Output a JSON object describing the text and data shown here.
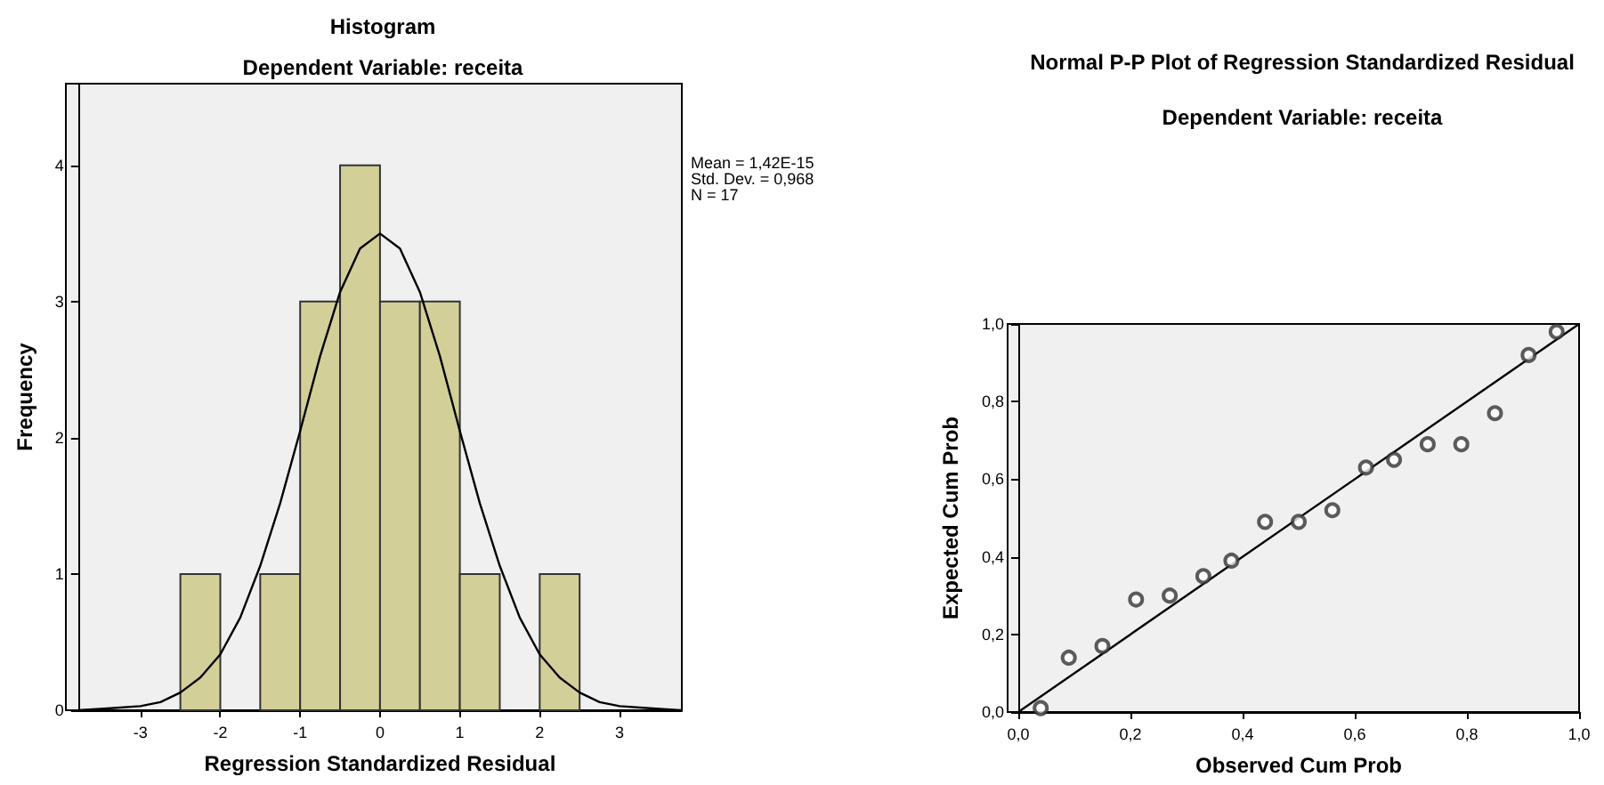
{
  "chart_data": [
    {
      "type": "histogram",
      "title": "Histogram",
      "subtitle": "Dependent Variable: receita",
      "xlabel": "Regression Standardized Residual",
      "ylabel": "Frequency",
      "annotations": [
        "Mean = 1,42E-15",
        "Std. Dev. = 0,968",
        "N = 17"
      ],
      "series": [
        {
          "color": "#d3cf98",
          "bins": [
            -2.5,
            -2,
            -1.5,
            -1,
            -0.5,
            0,
            0.5,
            1,
            1.5,
            2,
            2.5
          ],
          "values": [
            1,
            0,
            1,
            3,
            4,
            3,
            3,
            1,
            0,
            1
          ]
        },
        {
          "type": "line",
          "color": "#000000",
          "x": [
            -3.78,
            -3.5,
            -3,
            -2.75,
            -2.5,
            -2.25,
            -2,
            -1.75,
            -1.5,
            -1.25,
            -1,
            -0.75,
            -0.5,
            -0.25,
            0,
            0.25,
            0.5,
            0.75,
            1,
            1.25,
            1.5,
            1.75,
            2,
            2.25,
            2.5,
            2.75,
            3,
            3.5,
            3.78
          ],
          "values": [
            0,
            0.01,
            0.03,
            0.06,
            0.13,
            0.24,
            0.41,
            0.68,
            1.06,
            1.52,
            2.05,
            2.6,
            3.07,
            3.39,
            3.5,
            3.39,
            3.07,
            2.6,
            2.05,
            1.52,
            1.06,
            0.68,
            0.41,
            0.24,
            0.13,
            0.06,
            0.03,
            0.01,
            0
          ]
        }
      ],
      "xlim": [
        -3.78,
        3.78
      ],
      "xticks": [
        -3,
        -2,
        -1,
        0,
        1,
        2,
        3
      ],
      "ylim": [
        0,
        4.6
      ],
      "yticks": [
        0,
        1,
        2,
        3,
        4
      ],
      "grid": false
    },
    {
      "type": "scatter",
      "title": "Normal P-P Plot of Regression Standardized Residual",
      "subtitle": "Dependent Variable: receita",
      "xlabel": "Observed Cum Prob",
      "ylabel": "Expected Cum Prob",
      "series": [
        {
          "marker": "circle",
          "color": "#333333",
          "x": [
            0.04,
            0.09,
            0.15,
            0.21,
            0.27,
            0.33,
            0.38,
            0.44,
            0.5,
            0.56,
            0.62,
            0.67,
            0.73,
            0.79,
            0.85,
            0.91,
            0.96
          ],
          "values": [
            0.01,
            0.14,
            0.17,
            0.29,
            0.3,
            0.35,
            0.39,
            0.49,
            0.49,
            0.52,
            0.63,
            0.65,
            0.69,
            0.69,
            0.77,
            0.92,
            0.98
          ]
        },
        {
          "type": "line",
          "marker": "none",
          "color": "#000000",
          "x": [
            0,
            1
          ],
          "values": [
            0,
            1
          ]
        }
      ],
      "xlim": [
        0,
        1
      ],
      "xticks": [
        {
          "value": 0,
          "label": "0,0"
        },
        {
          "value": 0.2,
          "label": "0,2"
        },
        {
          "value": 0.4,
          "label": "0,4"
        },
        {
          "value": 0.6,
          "label": "0,6"
        },
        {
          "value": 0.8,
          "label": "0,8"
        },
        {
          "value": 1,
          "label": "1,0"
        }
      ],
      "ylim": [
        0,
        1
      ],
      "yticks": [
        {
          "value": 0,
          "label": "0,0"
        },
        {
          "value": 0.2,
          "label": "0,2"
        },
        {
          "value": 0.4,
          "label": "0,4"
        },
        {
          "value": 0.6,
          "label": "0,6"
        },
        {
          "value": 0.8,
          "label": "0,8"
        },
        {
          "value": 1,
          "label": "1,0"
        }
      ],
      "grid": false
    }
  ]
}
